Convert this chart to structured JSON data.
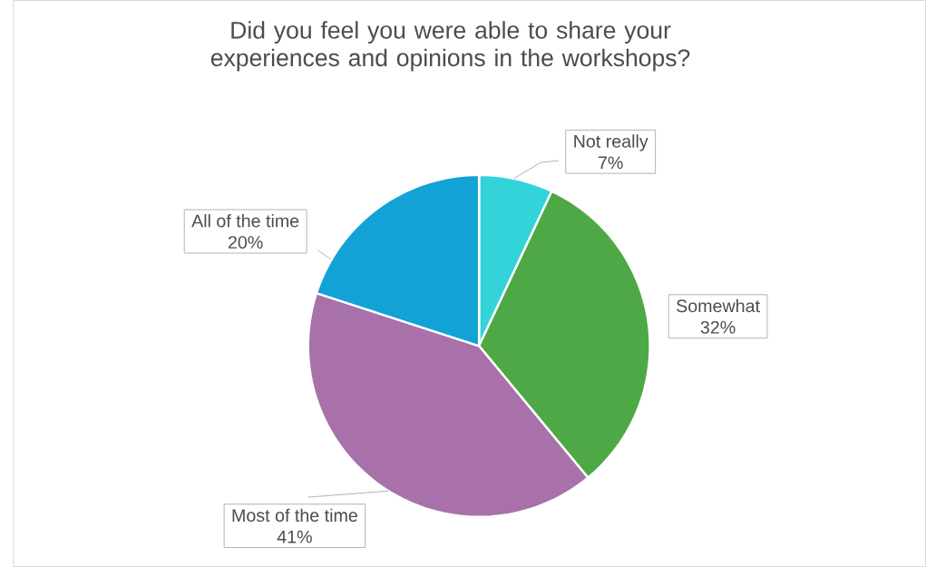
{
  "chart_data": {
    "type": "pie",
    "title": "Did you feel you were able to share your experiences and opinions in the workshops?",
    "categories": [
      "Not really",
      "Somewhat",
      "Most of the time",
      "All of the time"
    ],
    "values": [
      7,
      32,
      41,
      20
    ],
    "value_labels": [
      "7%",
      "32%",
      "41%",
      "20%"
    ],
    "colors": [
      "#33d4d9",
      "#4ea845",
      "#a871aa",
      "#12a2d6"
    ]
  }
}
